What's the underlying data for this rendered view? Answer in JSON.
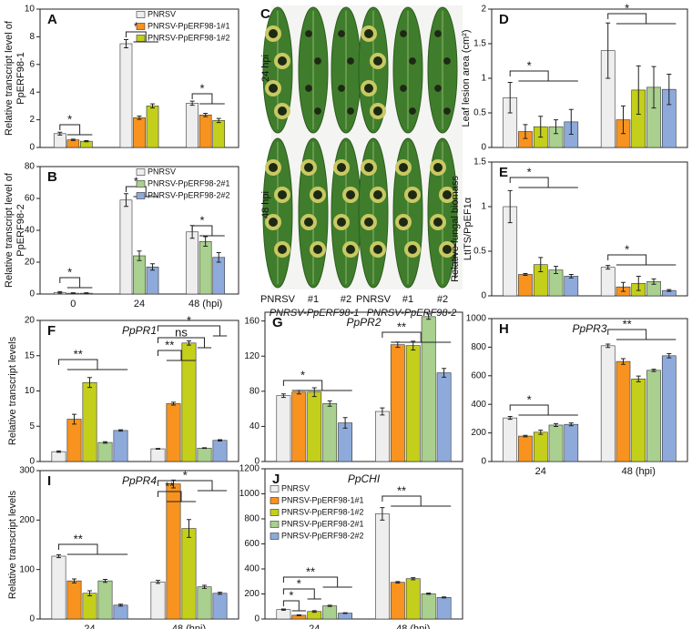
{
  "chart_data": [
    {
      "type": "bar",
      "label": "A",
      "ylabel": [
        "Relative transcript level of",
        "PpERF98-1"
      ],
      "categories": [
        null,
        null,
        null
      ],
      "series": [
        {
          "name": "PNRSV",
          "color": "#eeeeee",
          "values": [
            1.0,
            7.5,
            3.2
          ],
          "errors": [
            0.1,
            0.3,
            0.15
          ]
        },
        {
          "name": "PNRSV-PpERF98-1#1",
          "color": "#f7931e",
          "values": [
            0.55,
            2.15,
            2.35
          ],
          "errors": [
            0.05,
            0.12,
            0.12
          ]
        },
        {
          "name": "PNRSV-PpERF98-1#2",
          "color": "#c3cf1a",
          "values": [
            0.45,
            3.0,
            1.95
          ],
          "errors": [
            0.04,
            0.15,
            0.15
          ]
        }
      ],
      "ylim": [
        0,
        10
      ],
      "yticks": [
        0,
        2,
        4,
        6,
        8,
        10
      ],
      "legend": "upper right",
      "significance": [
        "*",
        "*",
        "*"
      ]
    },
    {
      "type": "bar",
      "label": "B",
      "ylabel": [
        "Relative transcript level of",
        "PpERF98-2"
      ],
      "categories": [
        "0",
        "24",
        "48 (hpi)"
      ],
      "series": [
        {
          "name": "PNRSV",
          "color": "#eeeeee",
          "values": [
            1,
            59,
            39
          ],
          "errors": [
            0.5,
            4,
            4
          ]
        },
        {
          "name": "PNRSV-PpERF98-2#1",
          "color": "#a9d08e",
          "values": [
            0.5,
            24,
            33
          ],
          "errors": [
            0.3,
            3,
            3
          ]
        },
        {
          "name": "PNRSV-PpERF98-2#2",
          "color": "#8eaadb",
          "values": [
            0.5,
            17,
            23
          ],
          "errors": [
            0.3,
            2,
            3
          ]
        }
      ],
      "ylim": [
        0,
        80
      ],
      "yticks": [
        0,
        20,
        40,
        60,
        80
      ],
      "legend": "upper right",
      "significance": [
        "*",
        "*",
        "*"
      ]
    },
    {
      "type": "bar",
      "label": "D",
      "ylabel": [
        "Leaf lesion area (cm²)"
      ],
      "categories": [
        null,
        null
      ],
      "series": [
        {
          "color": "#eeeeee",
          "values": [
            0.72,
            1.4
          ],
          "errors": [
            0.22,
            0.4
          ]
        },
        {
          "color": "#f7931e",
          "values": [
            0.23,
            0.4
          ],
          "errors": [
            0.1,
            0.2
          ]
        },
        {
          "color": "#c3cf1a",
          "values": [
            0.3,
            0.83
          ],
          "errors": [
            0.15,
            0.35
          ]
        },
        {
          "color": "#a9d08e",
          "values": [
            0.3,
            0.87
          ],
          "errors": [
            0.1,
            0.3
          ]
        },
        {
          "color": "#8eaadb",
          "values": [
            0.37,
            0.84
          ],
          "errors": [
            0.18,
            0.22
          ]
        }
      ],
      "ylim": [
        0,
        2
      ],
      "yticks": [
        0,
        0.5,
        1,
        1.5,
        2
      ],
      "significance": [
        "*",
        "*"
      ]
    },
    {
      "type": "bar",
      "label": "E",
      "ylabel": [
        "Relative fungal biomass",
        "LtITS/PpEF1α"
      ],
      "categories": [
        null,
        null
      ],
      "series": [
        {
          "color": "#eeeeee",
          "values": [
            1.0,
            0.32
          ],
          "errors": [
            0.18,
            0.02
          ]
        },
        {
          "color": "#f7931e",
          "values": [
            0.24,
            0.1
          ],
          "errors": [
            0.01,
            0.05
          ]
        },
        {
          "color": "#c3cf1a",
          "values": [
            0.35,
            0.14
          ],
          "errors": [
            0.08,
            0.08
          ]
        },
        {
          "color": "#a9d08e",
          "values": [
            0.29,
            0.16
          ],
          "errors": [
            0.04,
            0.03
          ]
        },
        {
          "color": "#8eaadb",
          "values": [
            0.22,
            0.06
          ],
          "errors": [
            0.02,
            0.01
          ]
        }
      ],
      "ylim": [
        0,
        1.5
      ],
      "yticks": [
        0,
        0.5,
        1,
        1.5
      ],
      "significance": [
        "*",
        "*"
      ]
    },
    {
      "type": "bar",
      "label": "F",
      "title": "PpPR1",
      "ylabel": [
        "Relative transcript levels"
      ],
      "categories": [
        null,
        null
      ],
      "series": [
        {
          "color": "#eeeeee",
          "values": [
            1.4,
            1.8
          ],
          "errors": [
            0.1,
            0.05
          ]
        },
        {
          "color": "#f7931e",
          "values": [
            6.0,
            8.2
          ],
          "errors": [
            0.7,
            0.2
          ]
        },
        {
          "color": "#c3cf1a",
          "values": [
            11.2,
            16.8
          ],
          "errors": [
            0.7,
            0.3
          ]
        },
        {
          "color": "#a9d08e",
          "values": [
            2.7,
            1.9
          ],
          "errors": [
            0.1,
            0.05
          ]
        },
        {
          "color": "#8eaadb",
          "values": [
            4.4,
            3.0
          ],
          "errors": [
            0.1,
            0.1
          ]
        }
      ],
      "ylim": [
        0,
        20
      ],
      "yticks": [
        0,
        5,
        10,
        15,
        20
      ],
      "significance": [
        "**",
        "**",
        "ns",
        "*"
      ]
    },
    {
      "type": "bar",
      "label": "G",
      "title": "PpPR2",
      "categories": [
        null,
        null
      ],
      "series": [
        {
          "color": "#eeeeee",
          "values": [
            75,
            57
          ],
          "errors": [
            2,
            4
          ]
        },
        {
          "color": "#f7931e",
          "values": [
            79,
            133
          ],
          "errors": [
            2,
            3
          ]
        },
        {
          "color": "#c3cf1a",
          "values": [
            79,
            132
          ],
          "errors": [
            5,
            5
          ]
        },
        {
          "color": "#a9d08e",
          "values": [
            66,
            165
          ],
          "errors": [
            3,
            3
          ]
        },
        {
          "color": "#8eaadb",
          "values": [
            44,
            101
          ],
          "errors": [
            6,
            5
          ]
        }
      ],
      "ylim": [
        0,
        170
      ],
      "yticks": [
        0,
        40,
        80,
        120,
        160
      ],
      "significance": [
        "*",
        "**"
      ]
    },
    {
      "type": "bar",
      "label": "H",
      "title": "PpPR3",
      "categories": [
        "24",
        "48 (hpi)"
      ],
      "series": [
        {
          "color": "#eeeeee",
          "values": [
            305,
            810
          ],
          "errors": [
            10,
            12
          ]
        },
        {
          "color": "#f7931e",
          "values": [
            178,
            700
          ],
          "errors": [
            5,
            20
          ]
        },
        {
          "color": "#c3cf1a",
          "values": [
            205,
            578
          ],
          "errors": [
            15,
            20
          ]
        },
        {
          "color": "#a9d08e",
          "values": [
            255,
            638
          ],
          "errors": [
            10,
            8
          ]
        },
        {
          "color": "#8eaadb",
          "values": [
            260,
            740
          ],
          "errors": [
            10,
            15
          ]
        }
      ],
      "ylim": [
        0,
        1000
      ],
      "yticks": [
        0,
        200,
        400,
        600,
        800,
        1000
      ],
      "significance": [
        "*",
        "**"
      ]
    },
    {
      "type": "bar",
      "label": "I",
      "title": "PpPR4",
      "ylabel": [
        "Relative transcript levels"
      ],
      "categories": [
        "24",
        "48 (hpi)"
      ],
      "series": [
        {
          "color": "#eeeeee",
          "values": [
            127,
            75
          ],
          "errors": [
            3,
            3
          ]
        },
        {
          "color": "#f7931e",
          "values": [
            77,
            273
          ],
          "errors": [
            4,
            8
          ]
        },
        {
          "color": "#c3cf1a",
          "values": [
            52,
            183
          ],
          "errors": [
            5,
            18
          ]
        },
        {
          "color": "#a9d08e",
          "values": [
            77,
            65
          ],
          "errors": [
            3,
            3
          ]
        },
        {
          "color": "#8eaadb",
          "values": [
            28,
            52
          ],
          "errors": [
            2,
            2
          ]
        }
      ],
      "ylim": [
        0,
        300
      ],
      "yticks": [
        0,
        100,
        200,
        300
      ],
      "significance": [
        "**",
        "**",
        "*"
      ]
    },
    {
      "type": "bar",
      "label": "J",
      "title": "PpCHI",
      "categories": [
        "24",
        "48 (hpi)"
      ],
      "series": [
        {
          "name": "PNRSV",
          "color": "#eeeeee",
          "values": [
            75,
            840
          ],
          "errors": [
            5,
            50
          ]
        },
        {
          "name": "PNRSV-PpERF98-1#1",
          "color": "#f7931e",
          "values": [
            30,
            293
          ],
          "errors": [
            4,
            6
          ]
        },
        {
          "name": "PNRSV-PpERF98-1#2",
          "color": "#c3cf1a",
          "values": [
            60,
            322
          ],
          "errors": [
            6,
            8
          ]
        },
        {
          "name": "PNRSV-PpERF98-2#1",
          "color": "#a9d08e",
          "values": [
            105,
            202
          ],
          "errors": [
            5,
            5
          ]
        },
        {
          "name": "PNRSV-PpERF98-2#2",
          "color": "#8eaadb",
          "values": [
            47,
            172
          ],
          "errors": [
            3,
            4
          ]
        }
      ],
      "ylim": [
        0,
        1200
      ],
      "yticks": [
        0,
        200,
        400,
        600,
        800,
        1000,
        1200
      ],
      "legend": "upper left",
      "significance": [
        "*",
        "*",
        "**",
        "**"
      ]
    }
  ],
  "photo_panel": {
    "label": "C",
    "rows": [
      "24 hpi",
      "48 hpi"
    ],
    "columns": [
      "PNRSV",
      "#1",
      "#2",
      "PNRSV",
      "#1",
      "#2"
    ],
    "groups": [
      "PNRSV-PpERF98-1",
      "PNRSV-PpERF98-2"
    ]
  }
}
